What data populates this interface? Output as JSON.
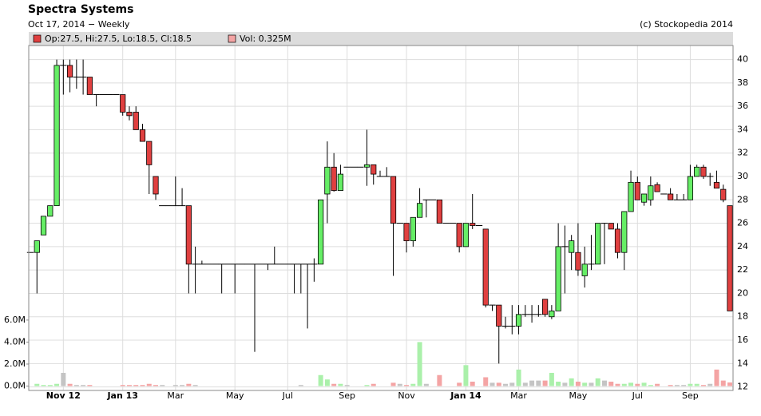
{
  "chart_data": {
    "type": "candlestick",
    "title": "Spectra Systems",
    "subtitle": "Oct 17, 2014 − Weekly",
    "source": "(c) Stockopedia 2014",
    "legend_price": "Op:27.5, Hi:27.5, Lo:18.5, Cl:18.5",
    "legend_volume": "Vol: 0.325M",
    "categories": [
      null,
      null,
      null,
      null,
      null,
      "Nov 12",
      null,
      null,
      null,
      null,
      null,
      null,
      null,
      null,
      "Jan 13",
      null,
      null,
      null,
      null,
      null,
      null,
      null,
      "Mar",
      null,
      null,
      null,
      null,
      null,
      null,
      null,
      null,
      "May",
      null,
      null,
      null,
      null,
      null,
      null,
      null,
      "Jul",
      null,
      null,
      null,
      null,
      null,
      null,
      null,
      null,
      "Sep",
      null,
      null,
      null,
      null,
      null,
      null,
      null,
      null,
      "Nov",
      null,
      null,
      null,
      null,
      null,
      null,
      null,
      null,
      "Jan 14",
      null,
      null,
      null,
      null,
      null,
      null,
      null,
      "Mar",
      null,
      null,
      null,
      null,
      null,
      null,
      null,
      null,
      "May",
      null,
      null,
      null,
      null,
      null,
      null,
      null,
      null,
      "Jul",
      null,
      null,
      null,
      null,
      null,
      null,
      null,
      "Sep",
      null,
      null,
      null,
      null,
      null,
      null
    ],
    "open": [
      23.5,
      23.5,
      25,
      26.6,
      27.5,
      39.5,
      39.5,
      38.5,
      38.5,
      38.5,
      37,
      37,
      37,
      37,
      37,
      35.5,
      35.5,
      34,
      33,
      30,
      27.5,
      27.5,
      27.5,
      27.5,
      27.5,
      22.5,
      22.5,
      22.5,
      22.5,
      22.5,
      22.5,
      22.5,
      22.5,
      22.5,
      22.5,
      22.5,
      22.5,
      22.5,
      22.5,
      22.5,
      22.5,
      22.5,
      22.5,
      22.5,
      22.5,
      28.5,
      30.8,
      28.8,
      30.8,
      30.8,
      30.8,
      30.8,
      31,
      30,
      30,
      30,
      26,
      26,
      24.5,
      26.5,
      28,
      28,
      28,
      26,
      26,
      26,
      24,
      26,
      25.8,
      25.5,
      19,
      19,
      17.2,
      17.2,
      17.2,
      18.2,
      18.2,
      18.2,
      19.5,
      18,
      18.5,
      24,
      23.5,
      23.5,
      21.5,
      22.5,
      22.5,
      26,
      26,
      25.5,
      23.5,
      27,
      29.5,
      27.8,
      28,
      29.3,
      28.5,
      28.5,
      28,
      28,
      28,
      30,
      30.8,
      30,
      29.5,
      28.9,
      27.5
    ],
    "high": [
      23.5,
      24.5,
      26.6,
      27.5,
      40,
      40,
      40,
      40,
      40,
      38.5,
      37,
      37,
      37,
      37,
      37,
      36,
      36,
      34.5,
      33,
      30,
      27.5,
      27.5,
      30,
      29,
      27.5,
      24,
      22.8,
      22.5,
      22.5,
      22.5,
      22.5,
      22.5,
      22.5,
      22.5,
      22.5,
      22.5,
      22.5,
      24,
      22.5,
      22.5,
      22.5,
      22.5,
      22.5,
      23,
      28,
      33,
      32,
      31,
      30.8,
      30.8,
      30.8,
      34,
      31,
      30.5,
      30.8,
      30,
      26,
      26,
      26.5,
      29,
      28,
      28,
      28,
      26,
      26,
      26,
      26,
      28.5,
      25.8,
      25.5,
      19,
      19,
      18,
      19,
      19,
      19,
      19,
      19,
      19.5,
      19,
      26,
      25.8,
      25,
      26,
      24,
      25,
      26,
      26,
      26,
      26,
      27,
      30.5,
      30,
      28.5,
      30,
      29.5,
      28.5,
      29,
      28.5,
      28.5,
      31,
      31,
      31,
      30.3,
      30.5,
      29.3,
      27.5
    ],
    "low": [
      23.5,
      20,
      25,
      26.6,
      27.5,
      37,
      37.2,
      37.5,
      37,
      37,
      36,
      37,
      37,
      37,
      35.2,
      34.8,
      34,
      33,
      28.5,
      28,
      27.5,
      27.5,
      27.5,
      27.5,
      20,
      20,
      22.5,
      22.5,
      22.5,
      20,
      22.5,
      20,
      22.5,
      22.5,
      15,
      22.5,
      22,
      22.5,
      22.5,
      22.5,
      20,
      20,
      17,
      21,
      22.5,
      26,
      28.7,
      28.8,
      30.8,
      30.8,
      30.8,
      29.2,
      29.3,
      30,
      30,
      21.5,
      26,
      23.5,
      24,
      26.5,
      26.5,
      28,
      26,
      26,
      26,
      23.5,
      24,
      25.5,
      25.8,
      18.8,
      18.5,
      14,
      17,
      16.5,
      16.5,
      18,
      17.5,
      18,
      18,
      17.8,
      18.5,
      20,
      22,
      21.5,
      20.5,
      22,
      22.5,
      22.5,
      25.5,
      23,
      22,
      27,
      28,
      27.5,
      27.5,
      28.7,
      28.5,
      28,
      28,
      28,
      28,
      30,
      29.8,
      29.2,
      29,
      27.8,
      18.5
    ],
    "close": [
      23.5,
      24.5,
      26.6,
      27.5,
      39.5,
      39.5,
      38.5,
      38.5,
      38.5,
      37,
      37,
      37,
      37,
      37,
      35.5,
      35.2,
      34,
      33,
      31,
      28.5,
      27.5,
      27.5,
      27.5,
      27.5,
      22.5,
      22.5,
      22.5,
      22.5,
      22.5,
      22.5,
      22.5,
      22.5,
      22.5,
      22.5,
      22.5,
      22.5,
      22.5,
      22.5,
      22.5,
      22.5,
      22.5,
      22.5,
      22.5,
      22.5,
      28,
      30.8,
      28.8,
      30.2,
      30.8,
      30.8,
      30.8,
      31,
      30.2,
      30,
      30,
      26,
      26,
      24.5,
      26.5,
      27.7,
      28,
      28,
      26,
      26,
      26,
      24,
      26,
      25.8,
      25.8,
      19,
      19,
      17.2,
      17.2,
      17.2,
      18.2,
      18.2,
      18.2,
      18.2,
      18.2,
      18.5,
      24,
      24,
      24.5,
      22,
      22.5,
      22.5,
      26,
      26,
      25.5,
      23.5,
      27,
      29.5,
      28,
      28.5,
      29.2,
      28.7,
      28.5,
      28,
      28,
      28,
      30,
      30.8,
      30,
      30,
      29,
      28,
      18.5
    ],
    "volume": [
      0,
      0.2,
      0.1,
      0.1,
      0.2,
      1.2,
      0.2,
      0.1,
      0.1,
      0.1,
      0,
      0,
      0,
      0,
      0.1,
      0.1,
      0.1,
      0.1,
      0.2,
      0.1,
      0.1,
      0,
      0.1,
      0.1,
      0.2,
      0.1,
      0,
      0,
      0,
      0,
      0,
      0,
      0,
      0,
      0,
      0,
      0,
      0,
      0,
      0,
      0,
      0.1,
      0,
      0,
      1,
      0.6,
      0.2,
      0.2,
      0.1,
      0,
      0,
      0.1,
      0.2,
      0,
      0,
      0.3,
      0.2,
      0.1,
      0.2,
      4,
      0.2,
      0,
      1,
      0,
      0,
      0.3,
      1.9,
      0.4,
      0,
      0.8,
      0.3,
      0.3,
      0.2,
      0.3,
      1.5,
      0.3,
      0.5,
      0.5,
      0.5,
      1.2,
      0.4,
      0.3,
      0.7,
      0.4,
      0.3,
      0.3,
      0.7,
      0.5,
      0.4,
      0.2,
      0.2,
      0.3,
      0.2,
      0.3,
      0.1,
      0.2,
      0,
      0.1,
      0.1,
      0.1,
      0.2,
      0.2,
      0.1,
      0.2,
      1.5,
      0.5,
      0.325
    ],
    "ylim": [
      11.7,
      41.2
    ],
    "yticks": [
      12,
      14,
      16,
      18,
      20,
      22,
      24,
      26,
      28,
      30,
      32,
      34,
      36,
      38,
      40
    ],
    "volume_lim": [
      -0.4,
      6.5
    ],
    "volume_ticks": [
      {
        "value": 0,
        "label": "0.0M"
      },
      {
        "value": 2,
        "label": "2.0M"
      },
      {
        "value": 4,
        "label": "4.0M"
      },
      {
        "value": 6,
        "label": "6.0M"
      }
    ],
    "grid": true,
    "up_color": "#66ee66",
    "down_color": "#e04040",
    "flat_color": "#000000",
    "volume_up_color": "#aaf0aa",
    "volume_down_color": "#f4a4a4",
    "volume_flat_color": "#c4c4c4"
  }
}
